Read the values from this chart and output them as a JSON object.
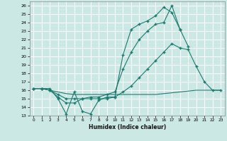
{
  "xlabel": "Humidex (Indice chaleur)",
  "ylabel": "",
  "xlim": [
    -0.5,
    23.5
  ],
  "ylim": [
    13,
    26.5
  ],
  "yticks": [
    13,
    14,
    15,
    16,
    17,
    18,
    19,
    20,
    21,
    22,
    23,
    24,
    25,
    26
  ],
  "xticks": [
    0,
    1,
    2,
    3,
    4,
    5,
    6,
    7,
    8,
    9,
    10,
    11,
    12,
    13,
    14,
    15,
    16,
    17,
    18,
    19,
    20,
    21,
    22,
    23
  ],
  "background_color": "#cce8e4",
  "grid_color": "#b0d8d4",
  "line_color": "#1a7a6e",
  "series": [
    {
      "x": [
        0,
        1,
        2,
        3,
        4,
        5,
        6,
        7,
        8,
        9,
        10,
        11,
        12,
        13,
        14,
        15,
        16,
        17,
        18,
        19
      ],
      "y": [
        16.2,
        16.2,
        16.2,
        15.0,
        13.2,
        15.8,
        13.5,
        13.2,
        14.8,
        15.2,
        15.2,
        20.2,
        23.2,
        23.8,
        24.2,
        24.8,
        25.8,
        25.2,
        23.2,
        null
      ],
      "marker": "+",
      "markersize": 3.5,
      "linewidth": 0.8
    },
    {
      "x": [
        0,
        1,
        2,
        3,
        4,
        5,
        6,
        7,
        8,
        9,
        10,
        11,
        12,
        13,
        14,
        15,
        16,
        17,
        18,
        19,
        20,
        21,
        22,
        23
      ],
      "y": [
        16.2,
        16.2,
        16.0,
        15.8,
        15.6,
        15.5,
        15.5,
        15.5,
        15.5,
        15.5,
        15.5,
        15.5,
        15.5,
        15.5,
        15.5,
        15.5,
        15.6,
        15.7,
        15.8,
        15.9,
        16.0,
        16.0,
        16.0,
        16.0
      ],
      "marker": null,
      "markersize": 0,
      "linewidth": 0.8
    },
    {
      "x": [
        0,
        1,
        2,
        3,
        4,
        5,
        6,
        7,
        8,
        9,
        10,
        11,
        12,
        13,
        14,
        15,
        16,
        17,
        18,
        19,
        20,
        21,
        22,
        23
      ],
      "y": [
        16.2,
        16.2,
        16.0,
        15.5,
        15.0,
        15.0,
        15.0,
        15.0,
        15.0,
        15.0,
        15.2,
        15.8,
        16.5,
        17.5,
        18.5,
        19.5,
        20.5,
        21.5,
        21.0,
        20.8,
        18.8,
        17.0,
        16.0,
        16.0
      ],
      "marker": "+",
      "markersize": 3.5,
      "linewidth": 0.8
    },
    {
      "x": [
        0,
        1,
        2,
        3,
        4,
        5,
        6,
        7,
        8,
        9,
        10,
        11,
        12,
        13,
        14,
        15,
        16,
        17,
        18,
        19,
        20,
        21,
        22,
        23
      ],
      "y": [
        16.2,
        16.2,
        16.0,
        15.2,
        14.5,
        14.5,
        15.0,
        15.2,
        15.2,
        15.5,
        15.8,
        18.5,
        20.5,
        22.0,
        23.0,
        23.8,
        24.0,
        26.0,
        23.2,
        21.2,
        null,
        null,
        null,
        null
      ],
      "marker": "+",
      "markersize": 3.5,
      "linewidth": 0.8
    }
  ]
}
